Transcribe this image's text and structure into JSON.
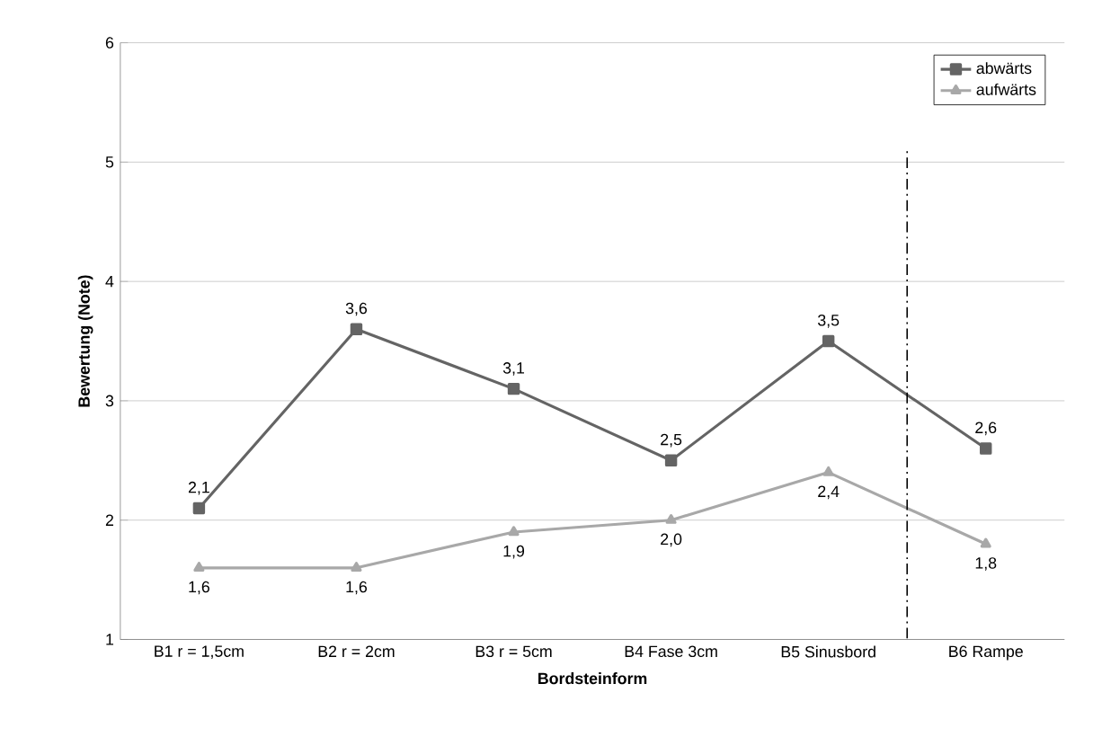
{
  "chart_data": {
    "type": "line",
    "xlabel": "Bordsteinform",
    "ylabel": "Bewertung (Note)",
    "categories": [
      "B1 r = 1,5cm",
      "B2 r = 2cm",
      "B3 r = 5cm",
      "B4 Fase 3cm",
      "B5 Sinusbord",
      "B6 Rampe"
    ],
    "series": [
      {
        "name": "abwärts",
        "color": "#646464",
        "marker": "square",
        "values": [
          2.1,
          3.6,
          3.1,
          2.5,
          3.5,
          2.6
        ],
        "value_labels": [
          "2,1",
          "3,6",
          "3,1",
          "2,5",
          "3,5",
          "2,6"
        ]
      },
      {
        "name": "aufwärts",
        "color": "#a8a8a8",
        "marker": "triangle",
        "values": [
          1.6,
          1.6,
          1.9,
          2.0,
          2.4,
          1.8
        ],
        "value_labels": [
          "1,6",
          "1,6",
          "1,9",
          "2,0",
          "2,4",
          "1,8"
        ]
      }
    ],
    "ylim": [
      1,
      6
    ],
    "yticks": [
      1,
      2,
      3,
      4,
      5,
      6
    ],
    "grid": "y",
    "legend": "top right",
    "line_style": "solid"
  }
}
